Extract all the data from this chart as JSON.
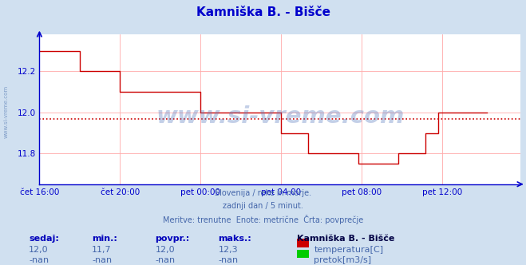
{
  "title": "Kamniška B. - Bišče",
  "title_color": "#0000cc",
  "bg_color": "#d0e0f0",
  "plot_bg_color": "#ffffff",
  "grid_color": "#ffaaaa",
  "axis_color": "#0000cc",
  "text_color": "#4466aa",
  "line_color": "#cc0000",
  "avg_line_color": "#cc0000",
  "ylim": [
    11.65,
    12.38
  ],
  "yticks": [
    11.8,
    12.0,
    12.2
  ],
  "avg_value": 11.97,
  "xtick_labels": [
    "čet 16:00",
    "čet 20:00",
    "pet 00:00",
    "pet 04:00",
    "pet 08:00",
    "pet 12:00"
  ],
  "xtick_positions": [
    0,
    48,
    96,
    144,
    192,
    240
  ],
  "xlim": [
    0,
    287
  ],
  "subtitle_lines": [
    "Slovenija / reke in morje.",
    "zadnji dan / 5 minut.",
    "Meritve: trenutne  Enote: metrične  Črta: povprečje"
  ],
  "footer_col_headers": [
    "sedaj:",
    "min.:",
    "povpr.:",
    "maks.:"
  ],
  "footer_row1_vals": [
    "12,0",
    "11,7",
    "12,0",
    "12,3"
  ],
  "footer_row2_vals": [
    "-nan",
    "-nan",
    "-nan",
    "-nan"
  ],
  "footer_station": "Kamniška B. - Bišče",
  "legend_temp": "temperatura[C]",
  "legend_flow": "pretok[m3/s]",
  "legend_temp_color": "#cc0000",
  "legend_flow_color": "#00cc00",
  "watermark": "www.si-vreme.com",
  "watermark_color": "#5577bb",
  "watermark_alpha": 0.35,
  "temp_data": [
    12.3,
    12.3,
    12.3,
    12.3,
    12.3,
    12.3,
    12.3,
    12.3,
    12.3,
    12.3,
    12.3,
    12.3,
    12.3,
    12.3,
    12.3,
    12.3,
    12.3,
    12.3,
    12.3,
    12.3,
    12.3,
    12.3,
    12.3,
    12.3,
    12.2,
    12.2,
    12.2,
    12.2,
    12.2,
    12.2,
    12.2,
    12.2,
    12.2,
    12.2,
    12.2,
    12.2,
    12.2,
    12.2,
    12.2,
    12.2,
    12.2,
    12.2,
    12.2,
    12.2,
    12.2,
    12.2,
    12.2,
    12.2,
    12.1,
    12.1,
    12.1,
    12.1,
    12.1,
    12.1,
    12.1,
    12.1,
    12.1,
    12.1,
    12.1,
    12.1,
    12.1,
    12.1,
    12.1,
    12.1,
    12.1,
    12.1,
    12.1,
    12.1,
    12.1,
    12.1,
    12.1,
    12.1,
    12.1,
    12.1,
    12.1,
    12.1,
    12.1,
    12.1,
    12.1,
    12.1,
    12.1,
    12.1,
    12.1,
    12.1,
    12.1,
    12.1,
    12.1,
    12.1,
    12.1,
    12.1,
    12.1,
    12.1,
    12.1,
    12.1,
    12.1,
    12.1,
    12.0,
    12.0,
    12.0,
    12.0,
    12.0,
    12.0,
    12.0,
    12.0,
    12.0,
    12.0,
    12.0,
    12.0,
    12.0,
    12.0,
    12.0,
    12.0,
    12.0,
    12.0,
    12.0,
    12.0,
    12.0,
    12.0,
    12.0,
    12.0,
    12.0,
    12.0,
    12.0,
    12.0,
    12.0,
    12.0,
    12.0,
    12.0,
    12.0,
    12.0,
    12.0,
    12.0,
    12.0,
    12.0,
    12.0,
    12.0,
    12.0,
    12.0,
    12.0,
    12.0,
    12.0,
    12.0,
    12.0,
    12.0,
    11.9,
    11.9,
    11.9,
    11.9,
    11.9,
    11.9,
    11.9,
    11.9,
    11.9,
    11.9,
    11.9,
    11.9,
    11.9,
    11.9,
    11.9,
    11.9,
    11.8,
    11.8,
    11.8,
    11.8,
    11.8,
    11.8,
    11.8,
    11.8,
    11.8,
    11.8,
    11.8,
    11.8,
    11.8,
    11.8,
    11.8,
    11.8,
    11.8,
    11.8,
    11.8,
    11.8,
    11.8,
    11.8,
    11.8,
    11.8,
    11.8,
    11.8,
    11.8,
    11.8,
    11.8,
    11.8,
    11.75,
    11.75,
    11.75,
    11.75,
    11.75,
    11.75,
    11.75,
    11.75,
    11.75,
    11.75,
    11.75,
    11.75,
    11.75,
    11.75,
    11.75,
    11.75,
    11.75,
    11.75,
    11.75,
    11.75,
    11.75,
    11.75,
    11.75,
    11.75,
    11.8,
    11.8,
    11.8,
    11.8,
    11.8,
    11.8,
    11.8,
    11.8,
    11.8,
    11.8,
    11.8,
    11.8,
    11.8,
    11.8,
    11.8,
    11.8,
    11.9,
    11.9,
    11.9,
    11.9,
    11.9,
    11.9,
    11.9,
    11.9,
    12.0,
    12.0,
    12.0,
    12.0,
    12.0,
    12.0,
    12.0,
    12.0,
    12.0,
    12.0,
    12.0,
    12.0,
    12.0,
    12.0,
    12.0,
    12.0,
    12.0,
    12.0,
    12.0,
    12.0,
    12.0,
    12.0,
    12.0,
    12.0,
    12.0,
    12.0,
    12.0,
    12.0,
    12.0,
    12.0
  ]
}
